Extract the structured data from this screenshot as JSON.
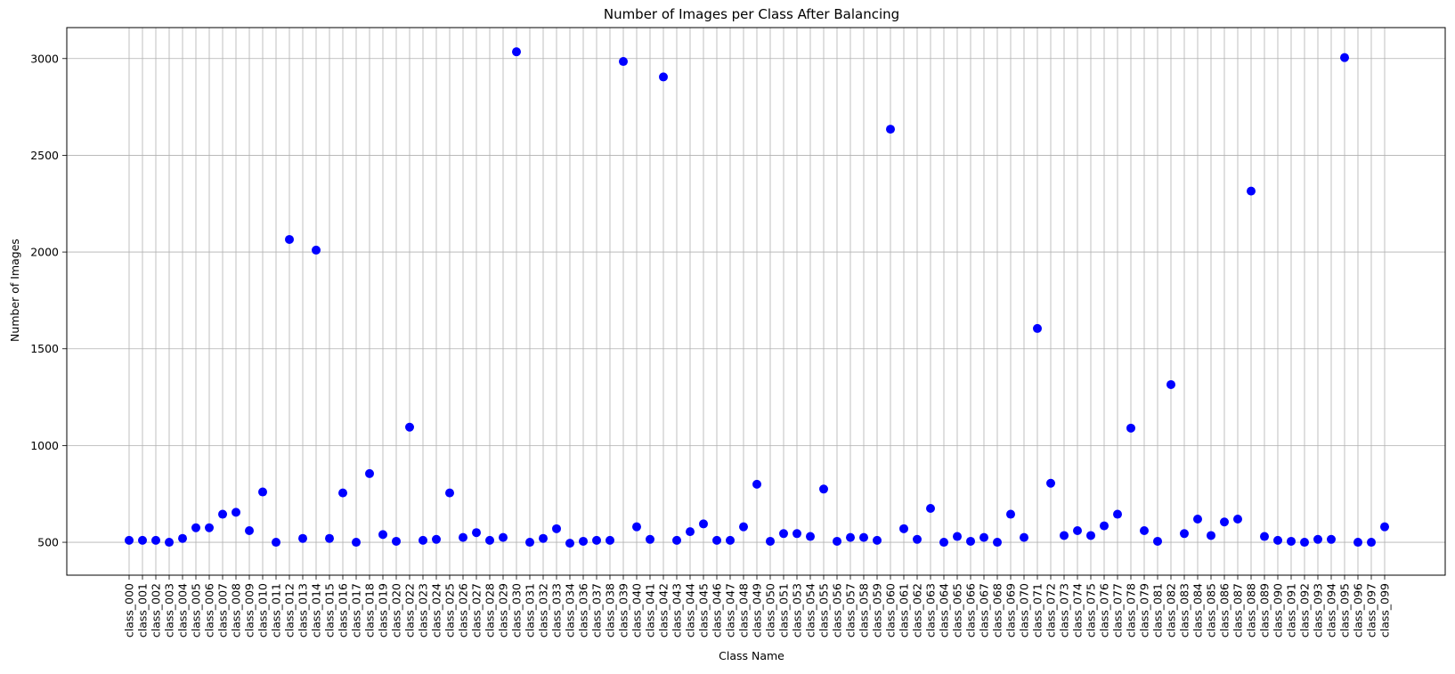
{
  "chart_data": {
    "type": "scatter",
    "title": "Number of Images per Class After Balancing",
    "xlabel": "Class Name",
    "ylabel": "Number of Images",
    "ylim": [
      330,
      3160
    ],
    "yticks": [
      500,
      1000,
      1500,
      2000,
      2500,
      3000
    ],
    "grid": true,
    "marker_color": "#0000ff",
    "categories": [
      "class_000",
      "class_001",
      "class_002",
      "class_003",
      "class_004",
      "class_005",
      "class_006",
      "class_007",
      "class_008",
      "class_009",
      "class_010",
      "class_011",
      "class_012",
      "class_013",
      "class_014",
      "class_015",
      "class_016",
      "class_017",
      "class_018",
      "class_019",
      "class_020",
      "class_022",
      "class_023",
      "class_024",
      "class_025",
      "class_026",
      "class_027",
      "class_028",
      "class_029",
      "class_030",
      "class_031",
      "class_032",
      "class_033",
      "class_034",
      "class_036",
      "class_037",
      "class_038",
      "class_039",
      "class_040",
      "class_041",
      "class_042",
      "class_043",
      "class_044",
      "class_045",
      "class_046",
      "class_047",
      "class_048",
      "class_049",
      "class_050",
      "class_051",
      "class_053",
      "class_054",
      "class_055",
      "class_056",
      "class_057",
      "class_058",
      "class_059",
      "class_060",
      "class_061",
      "class_062",
      "class_063",
      "class_064",
      "class_065",
      "class_066",
      "class_067",
      "class_068",
      "class_069",
      "class_070",
      "class_071",
      "class_072",
      "class_073",
      "class_074",
      "class_075",
      "class_076",
      "class_077",
      "class_078",
      "class_079",
      "class_081",
      "class_082",
      "class_083",
      "class_084",
      "class_085",
      "class_086",
      "class_087",
      "class_088",
      "class_089",
      "class_090",
      "class_091",
      "class_092",
      "class_093",
      "class_094",
      "class_095",
      "class_096",
      "class_097",
      "class_099"
    ],
    "values": [
      510,
      510,
      510,
      500,
      520,
      575,
      575,
      645,
      655,
      560,
      760,
      500,
      2065,
      520,
      2010,
      520,
      755,
      500,
      855,
      540,
      505,
      1095,
      510,
      515,
      755,
      525,
      550,
      510,
      525,
      3035,
      500,
      520,
      570,
      495,
      505,
      510,
      510,
      2985,
      580,
      515,
      2905,
      510,
      555,
      595,
      510,
      510,
      580,
      800,
      505,
      545,
      545,
      530,
      775,
      505,
      525,
      525,
      510,
      2635,
      570,
      515,
      675,
      500,
      530,
      505,
      525,
      500,
      645,
      525,
      1605,
      805,
      535,
      560,
      535,
      585,
      645,
      1090,
      560,
      505,
      1315,
      545,
      620,
      535,
      605,
      620,
      2315,
      530,
      510,
      505,
      500,
      515,
      515,
      3005,
      500,
      500,
      580
    ]
  }
}
